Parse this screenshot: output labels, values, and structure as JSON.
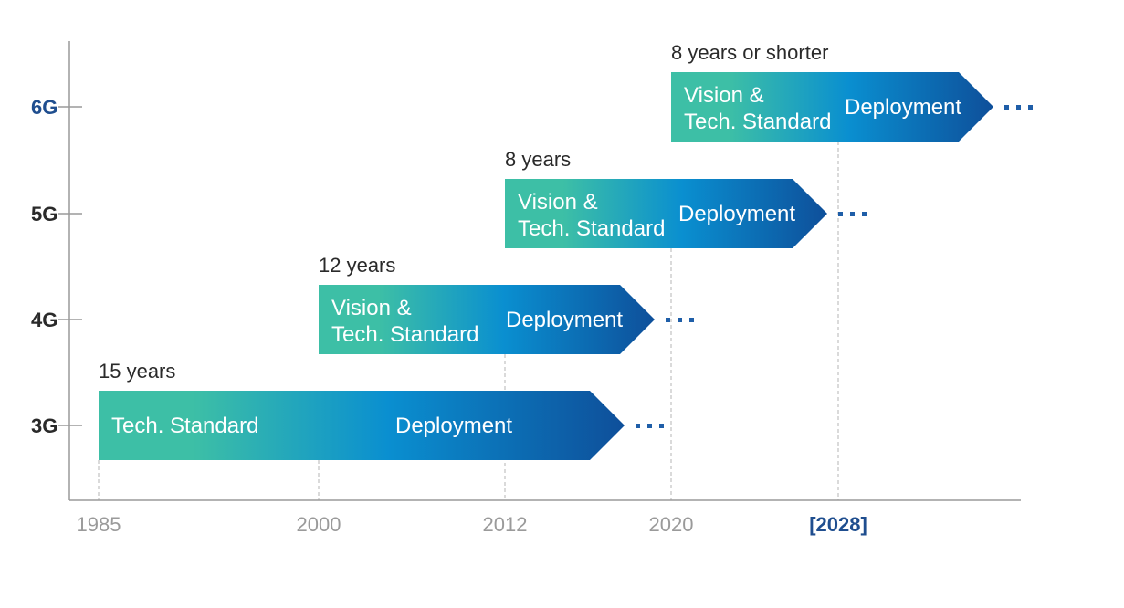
{
  "chart_data": {
    "type": "timeline",
    "x_ticks": [
      {
        "label": "1985",
        "year": 1985,
        "highlight": false
      },
      {
        "label": "2000",
        "year": 2000,
        "highlight": false
      },
      {
        "label": "2012",
        "year": 2012,
        "highlight": false
      },
      {
        "label": "2020",
        "year": 2020,
        "highlight": false
      },
      {
        "label": "[2028]",
        "year": 2028,
        "highlight": true
      }
    ],
    "generations": [
      {
        "label": "3G",
        "highlight": false,
        "start": 1985,
        "duration_label": "15 years",
        "phase1": [
          "Tech. Standard"
        ],
        "phase2": "Deployment"
      },
      {
        "label": "4G",
        "highlight": false,
        "start": 2000,
        "duration_label": "12 years",
        "phase1": [
          "Vision &",
          "Tech. Standard"
        ],
        "phase2": "Deployment"
      },
      {
        "label": "5G",
        "highlight": false,
        "start": 2012,
        "duration_label": "8 years",
        "phase1": [
          "Vision &",
          "Tech. Standard"
        ],
        "phase2": "Deployment"
      },
      {
        "label": "6G",
        "highlight": true,
        "start": 2020,
        "duration_label": "8 years or shorter",
        "phase1": [
          "Vision &",
          "Tech. Standard"
        ],
        "phase2": "Deployment"
      }
    ],
    "continuation_marker": "...",
    "colors": {
      "gradient_start": "#3dbfa6",
      "gradient_mid": "#0a8fd0",
      "gradient_end": "#0e4f9a",
      "highlight_text": "#1f4e8f",
      "dots": "#1f5ea8",
      "axis": "#9a9a9a",
      "tick_text": "#9a9a9a",
      "label_text": "#2a2a2a"
    }
  }
}
